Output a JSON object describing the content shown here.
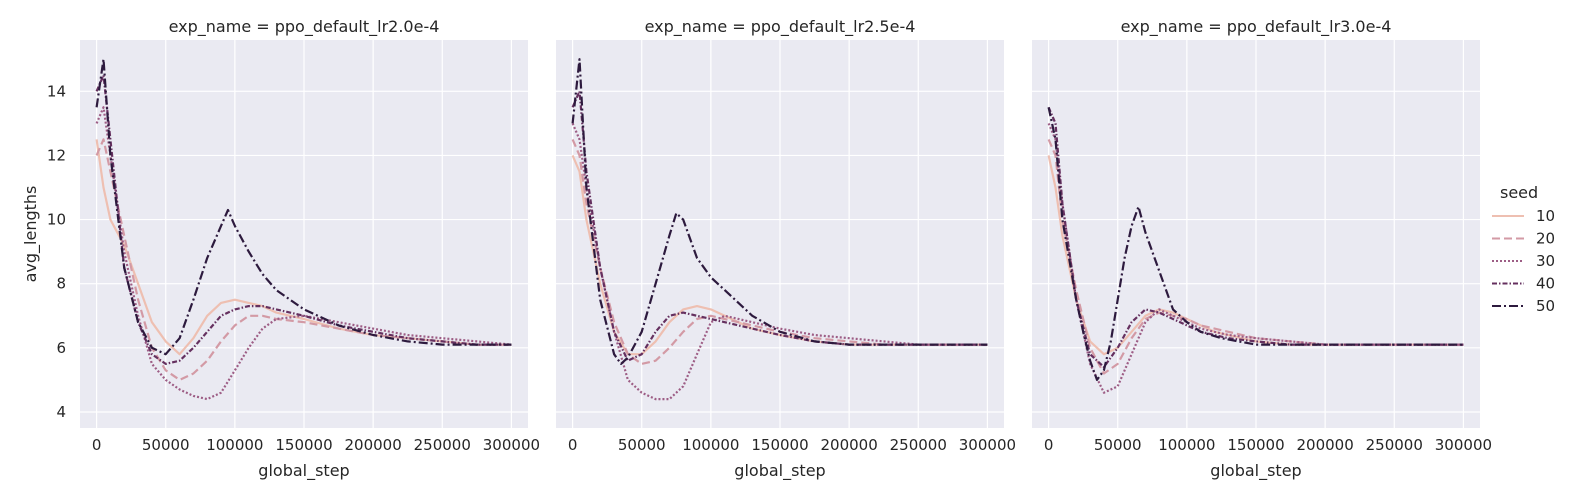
{
  "chart_data": {
    "type": "line",
    "facet_label": "exp_name",
    "xlabel": "global_step",
    "ylabel": "avg_lengths",
    "xlim": [
      -12000,
      312000
    ],
    "ylim": [
      3.5,
      15.6
    ],
    "xticks": [
      0,
      50000,
      100000,
      150000,
      200000,
      250000,
      300000
    ],
    "yticks": [
      4,
      6,
      8,
      10,
      12,
      14
    ],
    "grid": true,
    "legend": {
      "title": "seed",
      "placement": "right",
      "entries": [
        {
          "label": "10",
          "color": "#eebfb1",
          "dash": ""
        },
        {
          "label": "20",
          "color": "#d39aa5",
          "dash": "8 4"
        },
        {
          "label": "30",
          "color": "#9d5d85",
          "dash": "2 2"
        },
        {
          "label": "40",
          "color": "#65305f",
          "dash": "5 2 1.5 2"
        },
        {
          "label": "50",
          "color": "#2d1a3e",
          "dash": "9 3 2 3"
        }
      ]
    },
    "panels": [
      {
        "title": "exp_name = ppo_default_lr2.0e-4",
        "series": [
          {
            "name": "10",
            "x": [
              0,
              5000,
              10000,
              20000,
              30000,
              40000,
              50000,
              60000,
              70000,
              80000,
              90000,
              100000,
              110000,
              120000,
              130000,
              150000,
              175000,
              200000,
              225000,
              250000,
              275000,
              300000
            ],
            "y": [
              12.5,
              11.0,
              10.0,
              9.2,
              8.0,
              6.8,
              6.2,
              5.8,
              6.3,
              7.0,
              7.4,
              7.5,
              7.4,
              7.3,
              7.1,
              6.9,
              6.6,
              6.4,
              6.3,
              6.2,
              6.1,
              6.1
            ]
          },
          {
            "name": "20",
            "x": [
              0,
              5000,
              10000,
              20000,
              30000,
              40000,
              50000,
              60000,
              70000,
              80000,
              90000,
              100000,
              110000,
              120000,
              130000,
              150000,
              175000,
              200000,
              225000,
              250000,
              275000,
              300000
            ],
            "y": [
              12.0,
              12.5,
              11.5,
              9.5,
              7.5,
              6.0,
              5.3,
              5.0,
              5.2,
              5.6,
              6.2,
              6.7,
              7.0,
              7.0,
              6.9,
              6.8,
              6.6,
              6.4,
              6.3,
              6.2,
              6.1,
              6.1
            ]
          },
          {
            "name": "30",
            "x": [
              0,
              5000,
              10000,
              20000,
              30000,
              40000,
              50000,
              60000,
              70000,
              80000,
              90000,
              100000,
              110000,
              120000,
              130000,
              150000,
              175000,
              200000,
              225000,
              250000,
              275000,
              300000
            ],
            "y": [
              13.0,
              13.5,
              12.0,
              9.0,
              7.0,
              5.5,
              5.0,
              4.7,
              4.5,
              4.4,
              4.6,
              5.3,
              6.0,
              6.6,
              6.9,
              7.0,
              6.8,
              6.6,
              6.4,
              6.3,
              6.2,
              6.1
            ]
          },
          {
            "name": "40",
            "x": [
              0,
              5000,
              10000,
              20000,
              30000,
              40000,
              50000,
              60000,
              70000,
              80000,
              90000,
              100000,
              110000,
              120000,
              130000,
              150000,
              175000,
              200000,
              225000,
              250000,
              275000,
              300000
            ],
            "y": [
              14.0,
              14.5,
              12.5,
              8.5,
              6.8,
              5.8,
              5.5,
              5.6,
              6.0,
              6.5,
              7.0,
              7.2,
              7.3,
              7.3,
              7.2,
              7.0,
              6.7,
              6.5,
              6.3,
              6.2,
              6.1,
              6.1
            ]
          },
          {
            "name": "50",
            "x": [
              0,
              5000,
              10000,
              20000,
              30000,
              40000,
              50000,
              60000,
              70000,
              80000,
              90000,
              95000,
              100000,
              110000,
              120000,
              130000,
              150000,
              175000,
              200000,
              225000,
              250000,
              275000,
              300000
            ],
            "y": [
              13.5,
              15.0,
              12.0,
              8.5,
              6.8,
              6.0,
              5.8,
              6.3,
              7.5,
              8.8,
              9.8,
              10.3,
              9.8,
              9.0,
              8.3,
              7.8,
              7.2,
              6.7,
              6.4,
              6.2,
              6.1,
              6.1,
              6.1
            ]
          }
        ]
      },
      {
        "title": "exp_name = ppo_default_lr2.5e-4",
        "series": [
          {
            "name": "10",
            "x": [
              0,
              5000,
              10000,
              20000,
              30000,
              40000,
              50000,
              60000,
              70000,
              80000,
              90000,
              100000,
              110000,
              120000,
              130000,
              150000,
              175000,
              200000,
              225000,
              250000,
              275000,
              300000
            ],
            "y": [
              12.0,
              11.5,
              10.0,
              8.0,
              6.5,
              5.8,
              5.8,
              6.2,
              6.8,
              7.2,
              7.3,
              7.2,
              7.0,
              6.8,
              6.6,
              6.4,
              6.2,
              6.1,
              6.1,
              6.1,
              6.1,
              6.1
            ]
          },
          {
            "name": "20",
            "x": [
              0,
              5000,
              10000,
              20000,
              30000,
              40000,
              50000,
              60000,
              70000,
              80000,
              90000,
              100000,
              110000,
              120000,
              130000,
              150000,
              175000,
              200000,
              225000,
              250000,
              275000,
              300000
            ],
            "y": [
              12.5,
              12.0,
              10.5,
              8.5,
              6.8,
              5.8,
              5.5,
              5.6,
              6.0,
              6.5,
              6.9,
              7.0,
              6.9,
              6.8,
              6.7,
              6.5,
              6.3,
              6.2,
              6.1,
              6.1,
              6.1,
              6.1
            ]
          },
          {
            "name": "30",
            "x": [
              0,
              5000,
              10000,
              20000,
              30000,
              40000,
              50000,
              60000,
              70000,
              80000,
              90000,
              100000,
              110000,
              120000,
              130000,
              150000,
              175000,
              200000,
              225000,
              250000,
              275000,
              300000
            ],
            "y": [
              13.0,
              12.5,
              11.0,
              8.5,
              6.5,
              5.0,
              4.6,
              4.4,
              4.4,
              4.8,
              5.8,
              6.8,
              7.0,
              6.9,
              6.8,
              6.6,
              6.4,
              6.3,
              6.2,
              6.1,
              6.1,
              6.1
            ]
          },
          {
            "name": "40",
            "x": [
              0,
              5000,
              10000,
              20000,
              30000,
              40000,
              50000,
              60000,
              70000,
              80000,
              90000,
              100000,
              110000,
              120000,
              130000,
              150000,
              175000,
              200000,
              225000,
              250000,
              275000,
              300000
            ],
            "y": [
              13.5,
              14.0,
              11.5,
              8.5,
              6.5,
              5.6,
              5.8,
              6.5,
              7.0,
              7.1,
              7.0,
              6.9,
              6.8,
              6.7,
              6.6,
              6.4,
              6.2,
              6.1,
              6.1,
              6.1,
              6.1,
              6.1
            ]
          },
          {
            "name": "50",
            "x": [
              0,
              5000,
              10000,
              20000,
              30000,
              35000,
              40000,
              50000,
              60000,
              70000,
              75000,
              80000,
              90000,
              100000,
              110000,
              120000,
              130000,
              150000,
              175000,
              200000,
              225000,
              250000,
              275000,
              300000
            ],
            "y": [
              13.0,
              15.0,
              11.0,
              7.5,
              5.8,
              5.5,
              5.7,
              6.5,
              8.0,
              9.5,
              10.2,
              10.0,
              8.8,
              8.2,
              7.8,
              7.4,
              7.0,
              6.5,
              6.2,
              6.1,
              6.1,
              6.1,
              6.1,
              6.1
            ]
          }
        ]
      },
      {
        "title": "exp_name = ppo_default_lr3.0e-4",
        "series": [
          {
            "name": "10",
            "x": [
              0,
              5000,
              10000,
              20000,
              30000,
              40000,
              50000,
              60000,
              70000,
              80000,
              90000,
              100000,
              110000,
              120000,
              130000,
              150000,
              175000,
              200000,
              225000,
              250000,
              275000,
              300000
            ],
            "y": [
              12.0,
              11.0,
              9.5,
              7.5,
              6.2,
              5.8,
              6.0,
              6.5,
              7.0,
              7.2,
              7.1,
              6.9,
              6.7,
              6.5,
              6.4,
              6.2,
              6.1,
              6.1,
              6.1,
              6.1,
              6.1,
              6.1
            ]
          },
          {
            "name": "20",
            "x": [
              0,
              5000,
              10000,
              20000,
              30000,
              40000,
              50000,
              60000,
              70000,
              80000,
              90000,
              100000,
              110000,
              120000,
              130000,
              150000,
              175000,
              200000,
              225000,
              250000,
              275000,
              300000
            ],
            "y": [
              12.5,
              12.0,
              10.0,
              7.8,
              6.0,
              5.2,
              5.5,
              6.3,
              6.9,
              7.1,
              7.0,
              6.9,
              6.7,
              6.6,
              6.5,
              6.3,
              6.2,
              6.1,
              6.1,
              6.1,
              6.1,
              6.1
            ]
          },
          {
            "name": "30",
            "x": [
              0,
              5000,
              10000,
              20000,
              30000,
              40000,
              50000,
              60000,
              70000,
              80000,
              90000,
              100000,
              110000,
              120000,
              130000,
              150000,
              175000,
              200000,
              225000,
              250000,
              275000,
              300000
            ],
            "y": [
              13.0,
              12.5,
              10.5,
              7.5,
              5.5,
              4.6,
              4.8,
              5.8,
              6.8,
              7.2,
              7.0,
              6.8,
              6.6,
              6.5,
              6.4,
              6.3,
              6.2,
              6.1,
              6.1,
              6.1,
              6.1,
              6.1
            ]
          },
          {
            "name": "40",
            "x": [
              0,
              5000,
              10000,
              20000,
              30000,
              40000,
              50000,
              60000,
              70000,
              80000,
              90000,
              100000,
              110000,
              120000,
              130000,
              150000,
              175000,
              200000,
              225000,
              250000,
              275000,
              300000
            ],
            "y": [
              13.5,
              13.0,
              10.5,
              7.5,
              5.8,
              5.4,
              6.0,
              6.8,
              7.2,
              7.1,
              6.9,
              6.7,
              6.5,
              6.4,
              6.3,
              6.2,
              6.1,
              6.1,
              6.1,
              6.1,
              6.1,
              6.1
            ]
          },
          {
            "name": "50",
            "x": [
              0,
              5000,
              10000,
              20000,
              25000,
              30000,
              35000,
              40000,
              45000,
              50000,
              55000,
              60000,
              65000,
              70000,
              80000,
              90000,
              100000,
              110000,
              125000,
              150000,
              175000,
              200000,
              250000,
              300000
            ],
            "y": [
              13.5,
              12.5,
              10.0,
              7.5,
              6.5,
              5.6,
              5.0,
              5.3,
              6.2,
              7.5,
              8.8,
              9.8,
              10.4,
              9.6,
              8.4,
              7.2,
              6.8,
              6.5,
              6.3,
              6.1,
              6.1,
              6.1,
              6.1,
              6.1
            ]
          }
        ]
      }
    ]
  }
}
